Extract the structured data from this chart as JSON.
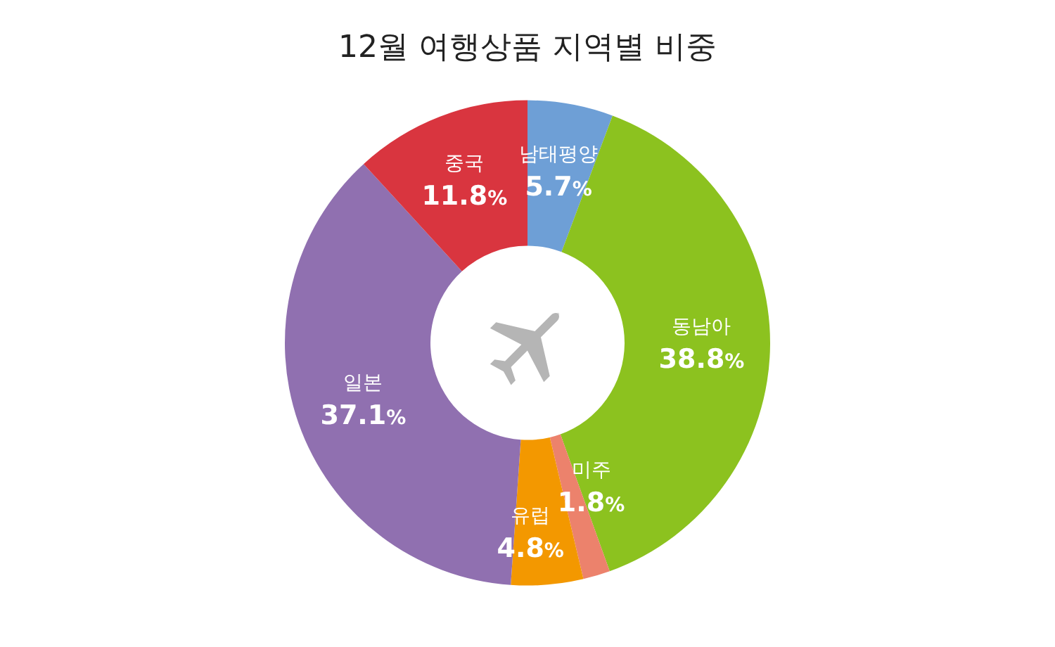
{
  "chart_data": {
    "type": "donut",
    "title": "12월 여행상품 지역별 비중",
    "categories": [
      "남태평양",
      "동남아",
      "미주",
      "유럽",
      "일본",
      "중국"
    ],
    "values": [
      5.7,
      38.8,
      1.8,
      4.8,
      37.1,
      11.8
    ],
    "colors": [
      "#6e9fd6",
      "#8cc21f",
      "#ec826c",
      "#f39800",
      "#9070b0",
      "#d9353f"
    ],
    "value_labels": [
      "5.7%",
      "38.8%",
      "1.8%",
      "4.8%",
      "37.1%",
      "11.8%"
    ],
    "legend": false
  }
}
